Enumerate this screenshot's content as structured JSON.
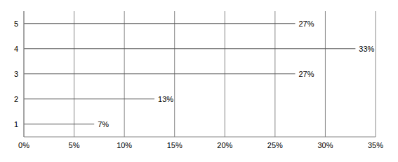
{
  "chart_data": {
    "type": "bar",
    "orientation": "horizontal",
    "categories": [
      "1",
      "2",
      "3",
      "4",
      "5"
    ],
    "values": [
      7,
      13,
      27,
      33,
      27
    ],
    "value_labels": [
      "7%",
      "13%",
      "27%",
      "33%",
      "27%"
    ],
    "color": "#595959",
    "xlim": [
      0,
      35
    ],
    "xticks": [
      {
        "value": 0,
        "label": "0%"
      },
      {
        "value": 5,
        "label": "5%"
      },
      {
        "value": 10,
        "label": "10%"
      },
      {
        "value": 15,
        "label": "15%"
      },
      {
        "value": 20,
        "label": "20%"
      },
      {
        "value": 25,
        "label": "25%"
      },
      {
        "value": 30,
        "label": "30%"
      },
      {
        "value": 35,
        "label": "35%"
      }
    ],
    "grid": true,
    "data_labels": true
  }
}
